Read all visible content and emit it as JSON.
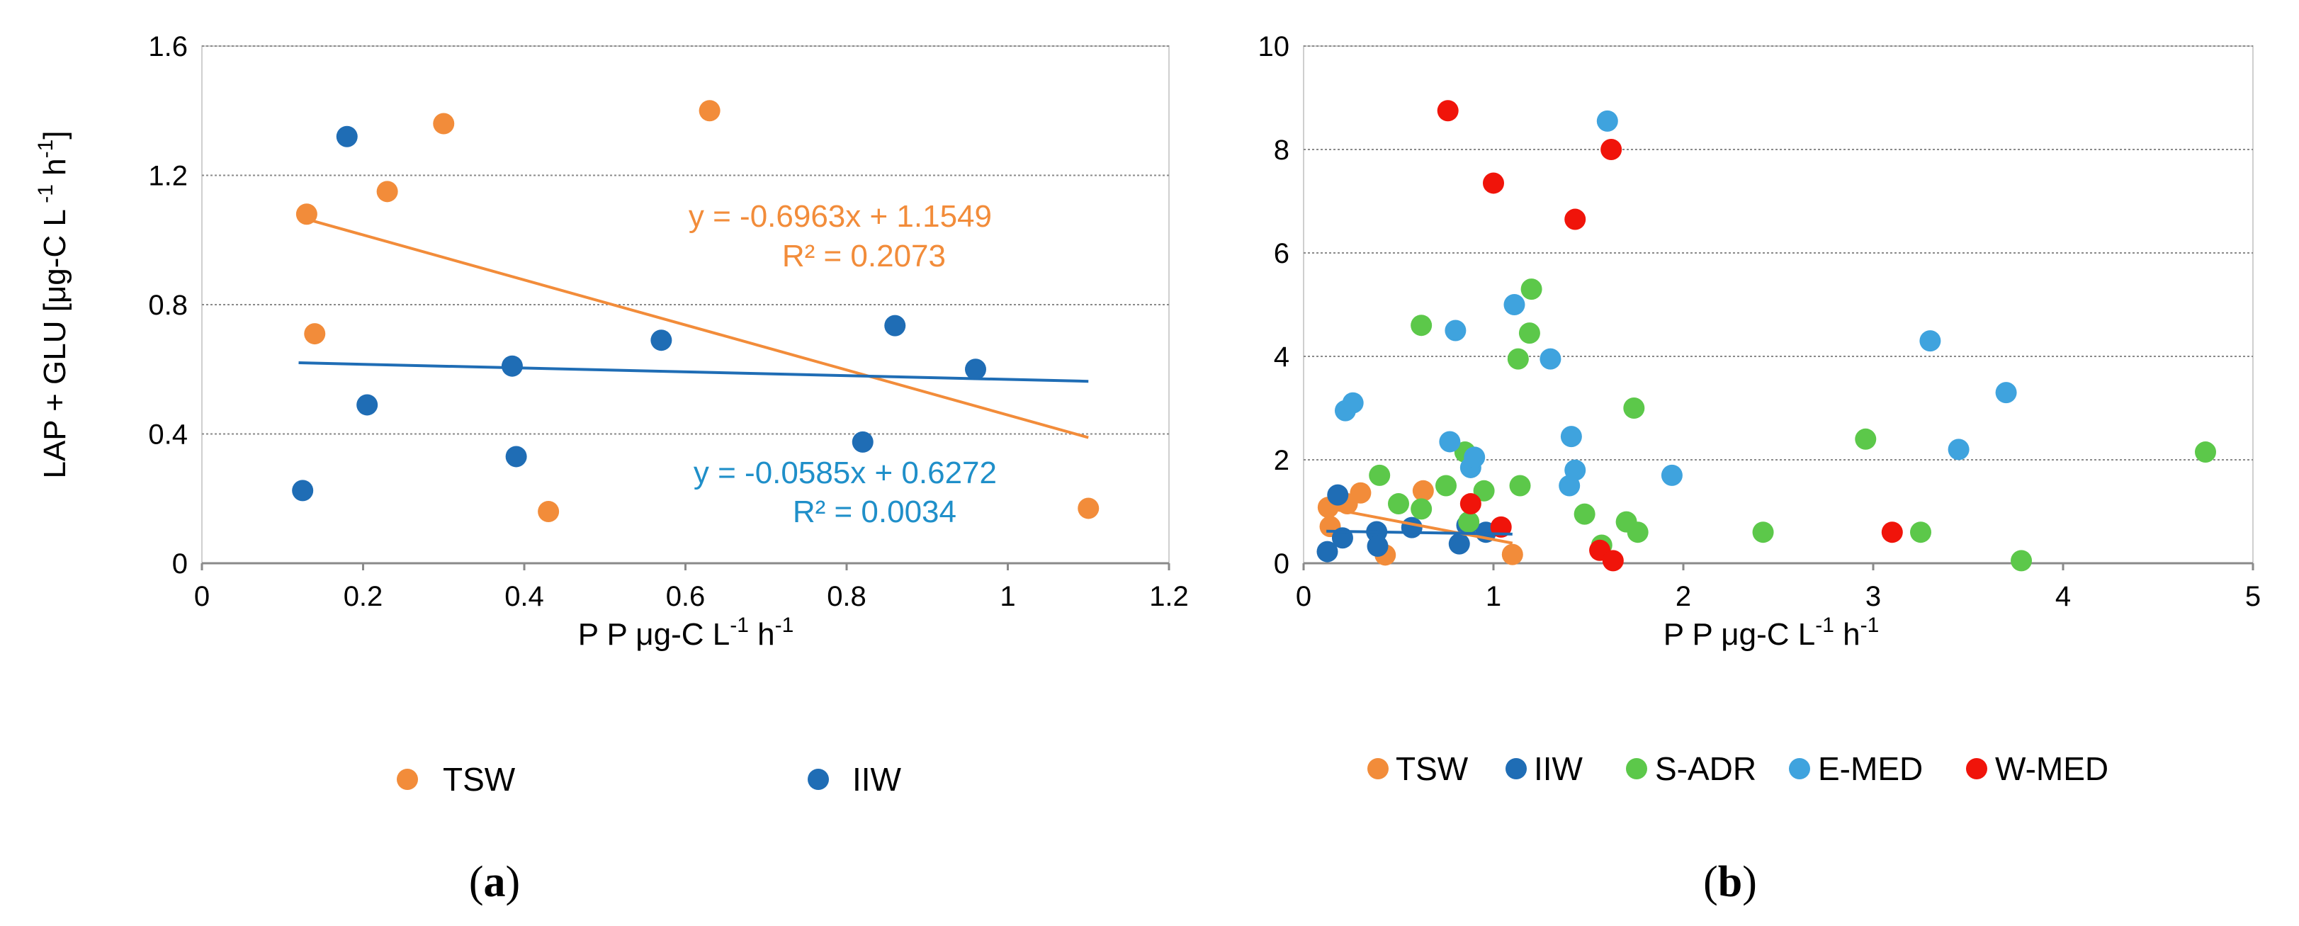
{
  "chart_data": [
    {
      "panel": "a",
      "type": "scatter",
      "xlabel_pre": "P P ",
      "xlabel_unit": "μg-C L",
      "xlabel_exp1": "-1",
      "xlabel_mid": " h",
      "xlabel_exp2": "-1",
      "ylabel_pre": "LAP + GLU [",
      "ylabel_unit": "μg-C L",
      "ylabel_exp1": " -1",
      "ylabel_mid": " h",
      "ylabel_exp2": "-1",
      "ylabel_post": "]",
      "xlim": [
        0,
        1.2
      ],
      "ylim": [
        0,
        1.6
      ],
      "xticks": [
        0,
        0.2,
        0.4,
        0.6,
        0.8,
        1,
        1.2
      ],
      "xtick_labels": [
        "0",
        "0.2",
        "0.4",
        "0.6",
        "0.8",
        "1",
        "1.2"
      ],
      "yticks": [
        0,
        0.4,
        0.8,
        1.2,
        1.6
      ],
      "ytick_labels": [
        "0",
        "0.4",
        "0.8",
        "1.2",
        "1.6"
      ],
      "series": [
        {
          "name": "TSW",
          "color": "#F28C3A",
          "points": [
            [
              0.13,
              1.08
            ],
            [
              0.14,
              0.71
            ],
            [
              0.23,
              1.15
            ],
            [
              0.3,
              1.36
            ],
            [
              0.43,
              0.16
            ],
            [
              0.63,
              1.4
            ],
            [
              1.1,
              0.17
            ]
          ],
          "trendline": {
            "slope": -0.6963,
            "intercept": 1.1549,
            "x_range": [
              0.12,
              1.1
            ],
            "equation": "y = -0.6963x + 1.1549",
            "r2": "R² = 0.2073"
          }
        },
        {
          "name": "IIW",
          "color": "#1F6DB5",
          "points": [
            [
              0.125,
              0.225
            ],
            [
              0.18,
              1.32
            ],
            [
              0.205,
              0.49
            ],
            [
              0.385,
              0.61
            ],
            [
              0.39,
              0.33
            ],
            [
              0.57,
              0.69
            ],
            [
              0.82,
              0.375
            ],
            [
              0.86,
              0.735
            ],
            [
              0.96,
              0.6
            ]
          ],
          "trendline": {
            "slope": -0.0585,
            "intercept": 0.6272,
            "x_range": [
              0.12,
              1.1
            ],
            "equation": "y = -0.0585x + 0.6272",
            "r2": "R² = 0.0034"
          }
        }
      ],
      "legend": [
        "TSW",
        "IIW"
      ],
      "panel_label": "a"
    },
    {
      "panel": "b",
      "type": "scatter",
      "xlabel_pre": "P P ",
      "xlabel_unit": "μg-C L",
      "xlabel_exp1": "-1",
      "xlabel_mid": " h",
      "xlabel_exp2": "-1",
      "xlim": [
        0,
        5
      ],
      "ylim": [
        0,
        10
      ],
      "xticks": [
        0,
        1,
        2,
        3,
        4,
        5
      ],
      "xtick_labels": [
        "0",
        "1",
        "2",
        "3",
        "4",
        "5"
      ],
      "yticks": [
        0,
        2,
        4,
        6,
        8,
        10
      ],
      "ytick_labels": [
        "0",
        "2",
        "4",
        "6",
        "8",
        "10"
      ],
      "series": [
        {
          "name": "TSW",
          "color": "#F28C3A",
          "points": [
            [
              0.13,
              1.08
            ],
            [
              0.14,
              0.71
            ],
            [
              0.23,
              1.15
            ],
            [
              0.3,
              1.36
            ],
            [
              0.43,
              0.16
            ],
            [
              0.63,
              1.4
            ],
            [
              1.1,
              0.17
            ]
          ],
          "trendline": {
            "slope": -0.6963,
            "intercept": 1.1549,
            "x_range": [
              0.12,
              1.1
            ]
          }
        },
        {
          "name": "IIW",
          "color": "#1F6DB5",
          "points": [
            [
              0.125,
              0.225
            ],
            [
              0.18,
              1.32
            ],
            [
              0.205,
              0.49
            ],
            [
              0.385,
              0.61
            ],
            [
              0.39,
              0.33
            ],
            [
              0.57,
              0.69
            ],
            [
              0.82,
              0.375
            ],
            [
              0.86,
              0.735
            ],
            [
              0.96,
              0.6
            ]
          ],
          "trendline": {
            "slope": -0.0585,
            "intercept": 0.6272,
            "x_range": [
              0.12,
              1.1
            ]
          }
        },
        {
          "name": "S-ADR",
          "color": "#5CC84A",
          "points": [
            [
              0.4,
              1.7
            ],
            [
              0.5,
              1.15
            ],
            [
              0.62,
              4.6
            ],
            [
              0.62,
              1.05
            ],
            [
              0.75,
              1.5
            ],
            [
              0.85,
              2.15
            ],
            [
              0.87,
              0.8
            ],
            [
              0.95,
              1.4
            ],
            [
              1.13,
              3.95
            ],
            [
              1.14,
              1.5
            ],
            [
              1.19,
              4.45
            ],
            [
              1.2,
              5.3
            ],
            [
              1.48,
              0.95
            ],
            [
              1.57,
              0.35
            ],
            [
              1.7,
              0.8
            ],
            [
              1.74,
              3.0
            ],
            [
              1.76,
              0.6
            ],
            [
              2.42,
              0.6
            ],
            [
              2.96,
              2.4
            ],
            [
              3.25,
              0.6
            ],
            [
              3.78,
              0.05
            ],
            [
              4.75,
              2.15
            ]
          ],
          "trendline": null
        },
        {
          "name": "E-MED",
          "color": "#3FA3DE",
          "points": [
            [
              0.22,
              2.95
            ],
            [
              0.26,
              3.1
            ],
            [
              0.77,
              2.35
            ],
            [
              0.8,
              4.5
            ],
            [
              0.88,
              1.85
            ],
            [
              0.9,
              2.05
            ],
            [
              1.11,
              5.0
            ],
            [
              1.3,
              3.95
            ],
            [
              1.4,
              1.5
            ],
            [
              1.41,
              2.45
            ],
            [
              1.43,
              1.8
            ],
            [
              1.6,
              8.55
            ],
            [
              1.94,
              1.7
            ],
            [
              3.3,
              4.3
            ],
            [
              3.45,
              2.2
            ],
            [
              3.7,
              3.3
            ]
          ],
          "trendline": null
        },
        {
          "name": "W-MED",
          "color": "#F0140A",
          "points": [
            [
              0.76,
              8.75
            ],
            [
              0.88,
              1.15
            ],
            [
              1.0,
              7.35
            ],
            [
              1.04,
              0.7
            ],
            [
              1.43,
              6.65
            ],
            [
              1.56,
              0.25
            ],
            [
              1.62,
              8.0
            ],
            [
              1.63,
              0.05
            ],
            [
              3.1,
              0.6
            ]
          ],
          "trendline": null
        }
      ],
      "legend": [
        "TSW",
        "IIW",
        "S-ADR",
        "E-MED",
        "W-MED"
      ],
      "panel_label": "b"
    }
  ]
}
